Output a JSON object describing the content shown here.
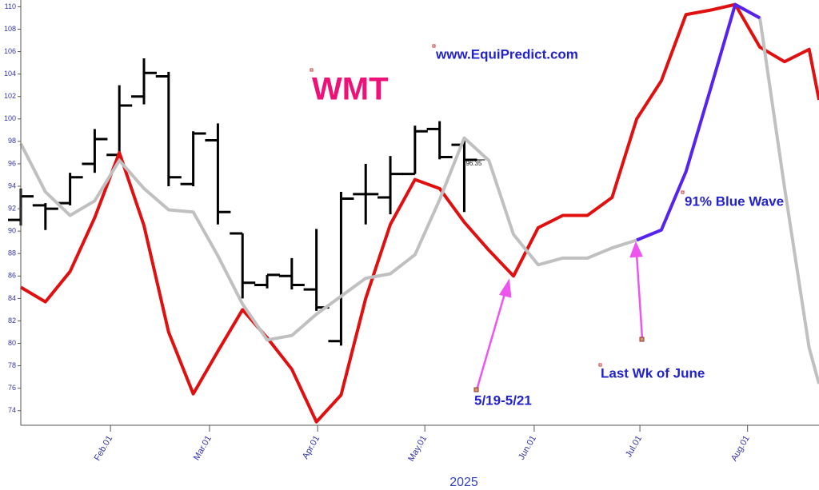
{
  "chart_data": {
    "type": "line",
    "title": "WMT",
    "subtitle": "www.EquiPredict.com",
    "xlabel": "2025",
    "x": [
      0,
      1,
      2,
      3,
      4,
      5,
      6,
      7,
      8,
      9,
      10,
      11,
      12,
      13,
      14,
      15,
      16,
      17,
      18,
      19,
      20,
      21,
      22,
      23,
      24,
      25,
      26,
      27,
      28,
      29,
      30,
      31,
      32,
      32.4
    ],
    "xlim": [
      0,
      32.4
    ],
    "xticks": [
      {
        "value": 3.64,
        "label": "Feb.01"
      },
      {
        "value": 7.66,
        "label": "Mar.01"
      },
      {
        "value": 12.05,
        "label": "Apr.01"
      },
      {
        "value": 16.4,
        "label": "May.01"
      },
      {
        "value": 20.84,
        "label": "Jun.01"
      },
      {
        "value": 25.13,
        "label": "Jul.01"
      },
      {
        "value": 29.5,
        "label": "Aug.01"
      }
    ],
    "ylim": [
      72.7,
      110.6
    ],
    "yticks": [
      74,
      76,
      78,
      80,
      82,
      84,
      86,
      88,
      90,
      92,
      94,
      96,
      98,
      100,
      102,
      104,
      106,
      108,
      110
    ],
    "series": [
      {
        "color": "#e01010",
        "values": [
          85.0,
          83.7,
          86.4,
          91.2,
          97.0,
          90.5,
          81.0,
          75.5,
          79.3,
          83.0,
          80.5,
          77.7,
          73.0,
          75.4,
          84.0,
          90.6,
          94.6,
          93.8,
          90.8,
          88.3,
          86.0,
          90.3,
          91.4,
          91.4,
          93.0,
          100.0,
          103.4,
          109.3,
          109.7,
          110.2,
          106.4,
          105.1,
          106.2,
          101.7
        ]
      },
      {
        "color": "#c0c0c0",
        "values": [
          97.8,
          93.5,
          91.4,
          92.7,
          96.3,
          93.8,
          91.9,
          91.7,
          87.8,
          83.5,
          80.3,
          80.7,
          82.6,
          84.2,
          85.8,
          86.2,
          87.9,
          92.8,
          98.3,
          96.3,
          89.7,
          87.0,
          87.6,
          87.6,
          88.5,
          89.2,
          null,
          null,
          null,
          110.2,
          109.0,
          93.9,
          79.6,
          76.4
        ]
      },
      {
        "color": "#5522ee",
        "values": [
          null,
          null,
          null,
          null,
          null,
          null,
          null,
          null,
          null,
          null,
          null,
          null,
          null,
          null,
          null,
          null,
          null,
          null,
          null,
          null,
          null,
          null,
          null,
          null,
          null,
          89.2,
          90.1,
          95.3,
          102.7,
          110.2,
          109.0,
          null,
          null,
          null
        ]
      }
    ],
    "ohlc": {
      "color": "#000000",
      "x": [
        0,
        1,
        2,
        3,
        4,
        5,
        6,
        7,
        8,
        9,
        10,
        11,
        12,
        13,
        14,
        15,
        16,
        17,
        18
      ],
      "open": [
        91.0,
        92.3,
        92.5,
        96.0,
        96.8,
        102.0,
        103.8,
        94.2,
        98.1,
        89.8,
        85.2,
        86.0,
        84.8,
        80.2,
        93.3,
        93.0,
        95.1,
        99.1,
        97.7
      ],
      "high": [
        93.8,
        92.5,
        95.2,
        99.1,
        103.0,
        105.4,
        104.2,
        98.9,
        99.6,
        89.8,
        86.1,
        87.6,
        90.2,
        93.5,
        96.0,
        96.7,
        99.4,
        99.8,
        98.1
      ],
      "low": [
        90.5,
        90.1,
        92.3,
        95.2,
        96.5,
        101.3,
        94.0,
        94.0,
        90.6,
        84.0,
        84.9,
        84.8,
        82.9,
        79.8,
        90.6,
        91.5,
        95.1,
        96.4,
        91.7
      ],
      "close": [
        93.1,
        92.0,
        94.8,
        98.2,
        101.2,
        104.1,
        94.8,
        98.7,
        91.7,
        85.4,
        86.1,
        85.2,
        83.2,
        92.9,
        93.3,
        95.1,
        98.9,
        96.6,
        96.35
      ],
      "value_labels": {
        "18": "96.35"
      }
    },
    "annotations": [
      "91% Blue Wave",
      "Last Wk of June",
      "5/19-5/21"
    ]
  }
}
